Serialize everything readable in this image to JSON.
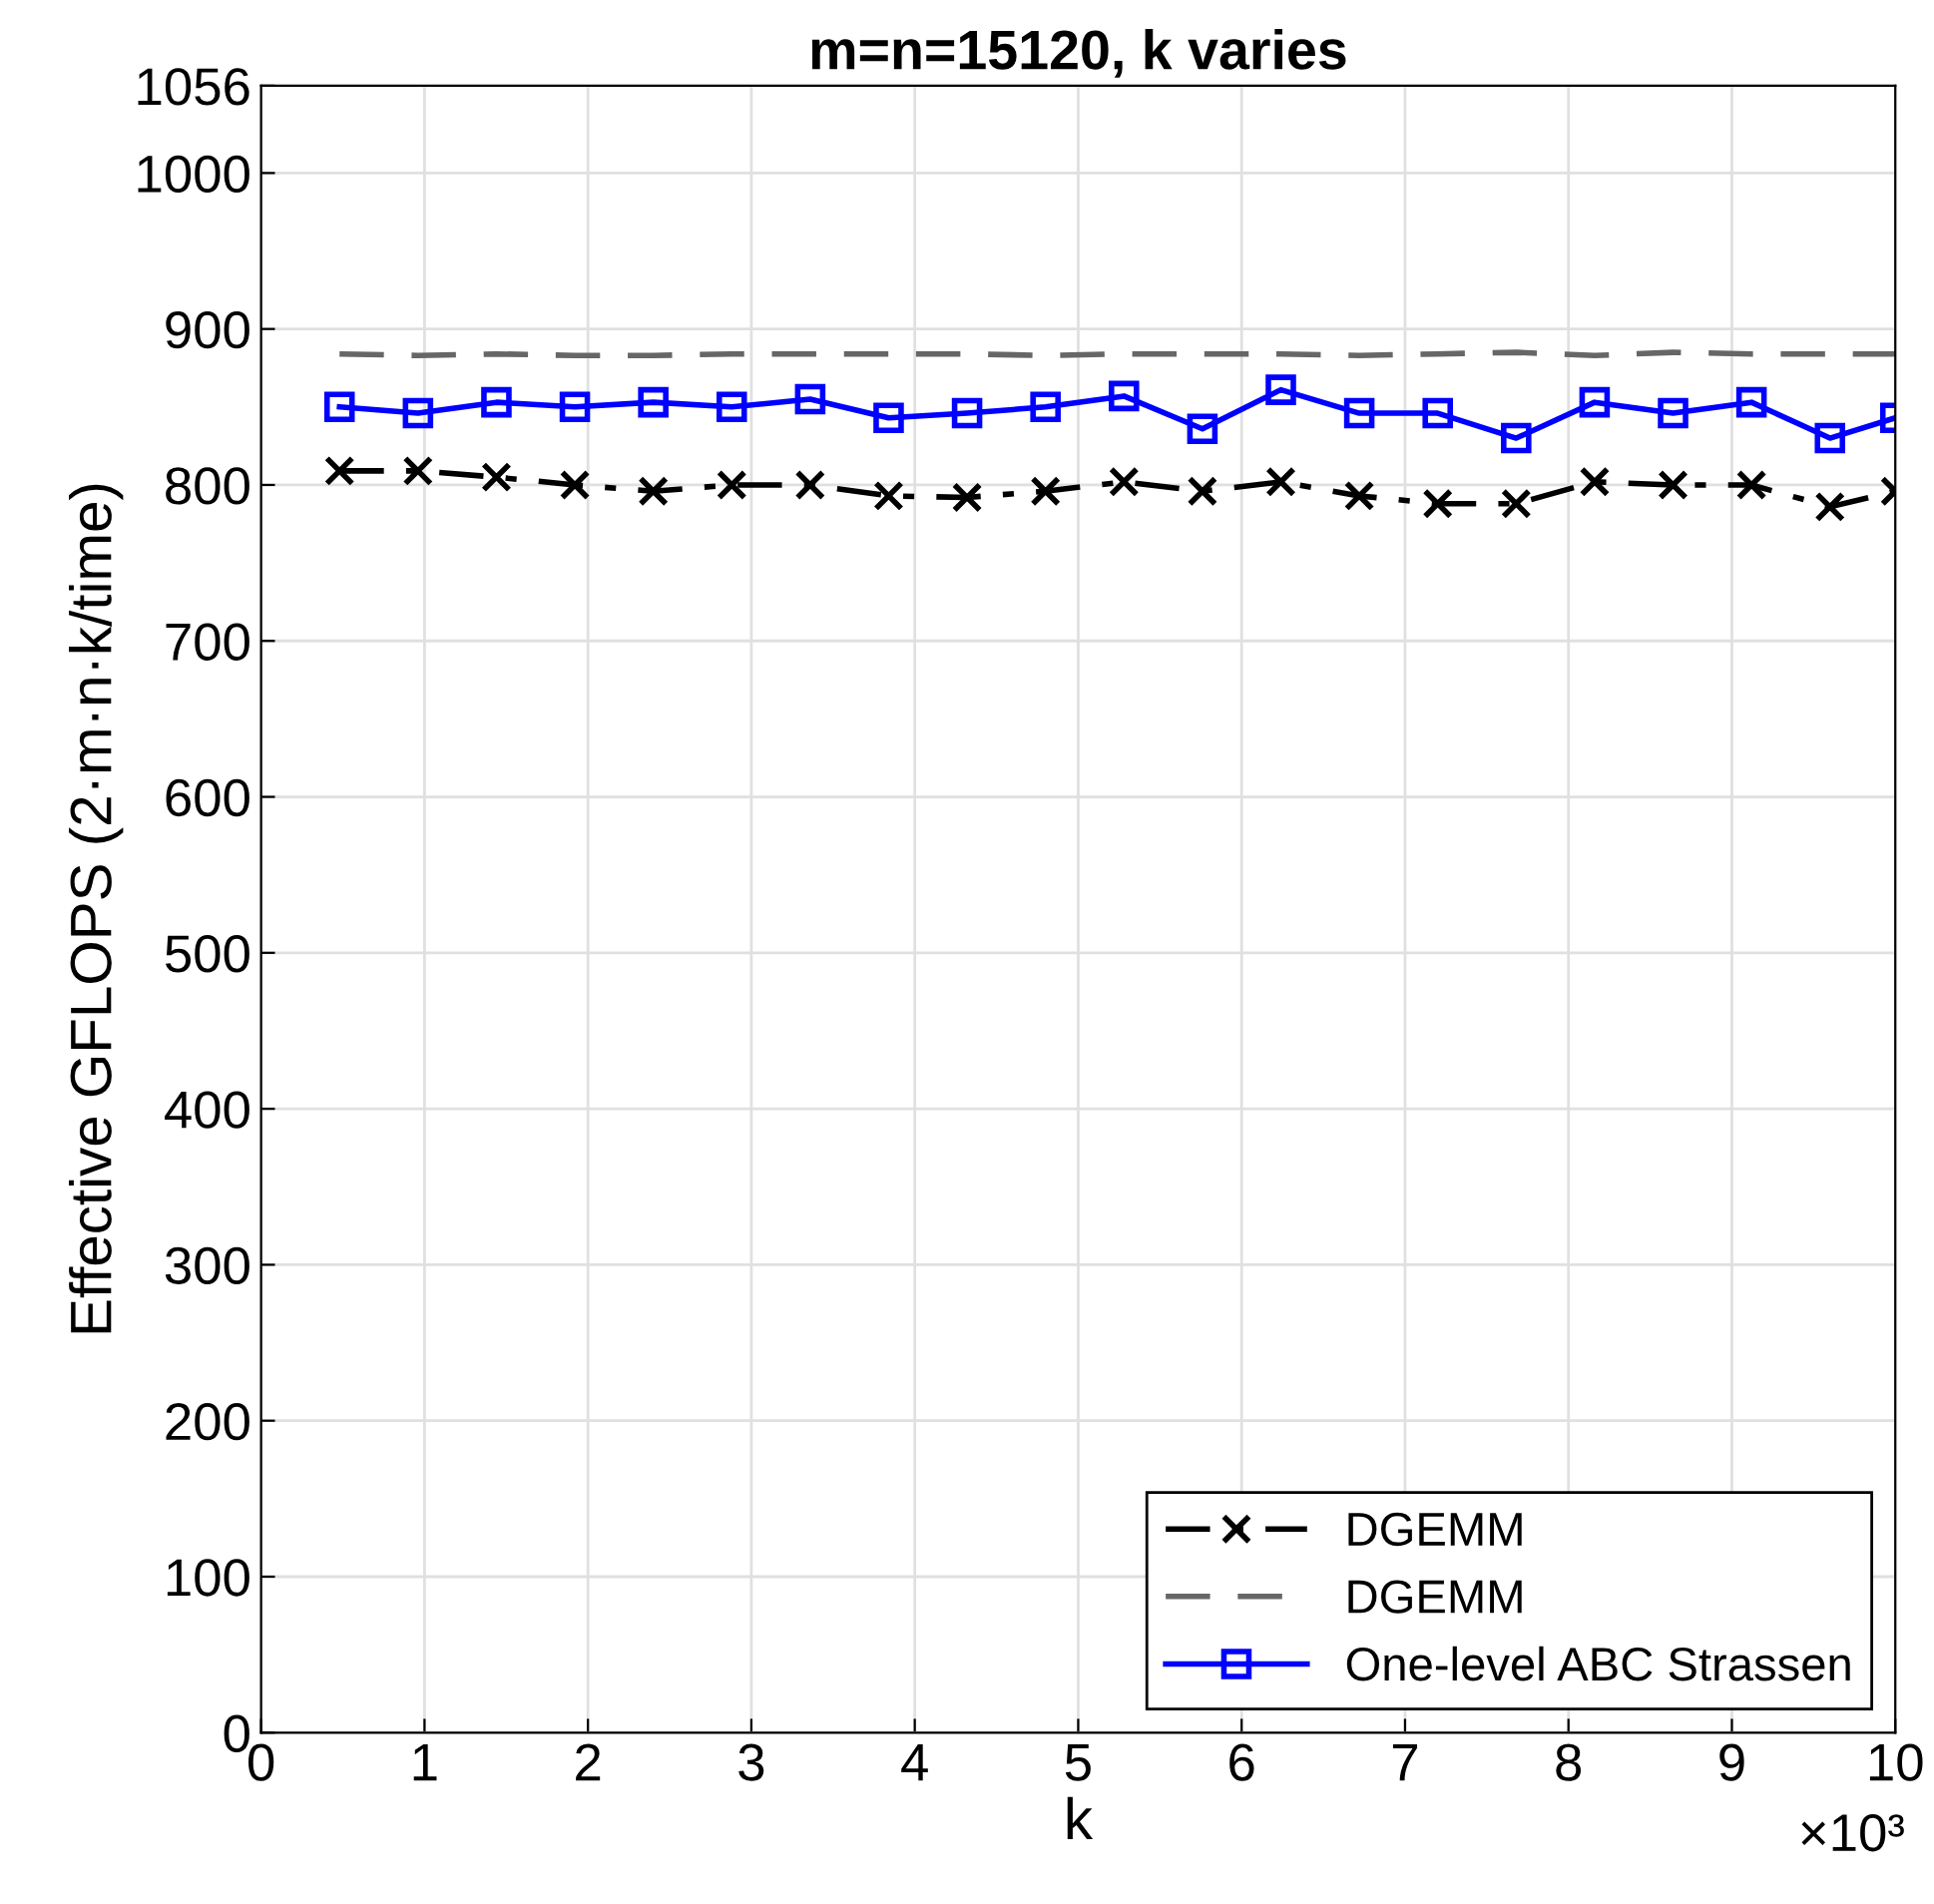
{
  "chart_data": {
    "type": "line",
    "title": "m=n=15120, k varies",
    "xlabel": "k",
    "ylabel": "Effective GFLOPS (2·m·n·k/time)",
    "x": [
      0.48,
      0.96,
      1.44,
      1.92,
      2.4,
      2.88,
      3.36,
      3.84,
      4.32,
      4.8,
      5.28,
      5.76,
      6.24,
      6.72,
      7.2,
      7.68,
      8.16,
      8.64,
      9.12,
      9.6,
      10
    ],
    "series": [
      {
        "name": "DGEMM",
        "color": "#000000",
        "marker": "cross",
        "line_style": "dashdot",
        "values": [
          809,
          809,
          805,
          800,
          796,
          800,
          800,
          793,
          792,
          796,
          802,
          796,
          802,
          793,
          788,
          788,
          802,
          800,
          800,
          786,
          796
        ]
      },
      {
        "name": "DGEMM",
        "color": "#666666",
        "marker": "none",
        "line_style": "dashed",
        "values": [
          884,
          883,
          884,
          883,
          883,
          884,
          884,
          884,
          884,
          883,
          884,
          884,
          884,
          883,
          884,
          885,
          883,
          885,
          884,
          884,
          884
        ]
      },
      {
        "name": "One-level ABC Strassen",
        "color": "#0000ff",
        "marker": "square",
        "line_style": "solid",
        "values": [
          850,
          846,
          853,
          850,
          853,
          850,
          855,
          843,
          846,
          850,
          857,
          836,
          861,
          846,
          846,
          830,
          853,
          846,
          853,
          830,
          843
        ]
      }
    ],
    "xlim": [
      0,
      10
    ],
    "xticks": [
      0,
      1,
      2,
      3,
      4,
      5,
      6,
      7,
      8,
      9,
      10
    ],
    "ylim": [
      0,
      1056
    ],
    "yticks": [
      0,
      100,
      200,
      300,
      400,
      500,
      600,
      700,
      800,
      900,
      1000,
      1056
    ],
    "annotations": [
      "×10³"
    ],
    "grid": true,
    "legend": "bottom right"
  }
}
